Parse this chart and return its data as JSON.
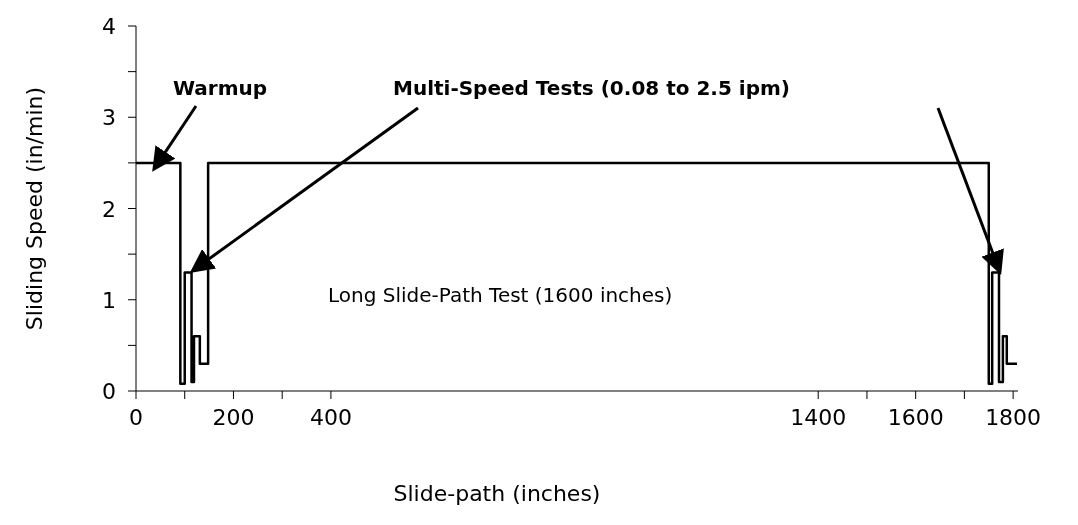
{
  "chart_data": {
    "type": "line",
    "xlabel": "Slide-path (inches)",
    "ylabel": "Sliding Speed (in/min)",
    "x": [
      0,
      91,
      91,
      100,
      100,
      114,
      114,
      119,
      119,
      131,
      131,
      148,
      148,
      153,
      153,
      1750,
      1750,
      1757,
      1757,
      1771,
      1771,
      1779,
      1779,
      1787,
      1787,
      1797,
      1797,
      1808
    ],
    "series": [
      {
        "color": "#000000",
        "values": [
          2.5,
          2.5,
          0.08,
          0.08,
          1.3,
          1.3,
          0.1,
          0.1,
          0.6,
          0.6,
          0.3,
          0.3,
          2.5,
          2.5,
          2.5,
          2.5,
          0.08,
          0.08,
          1.3,
          1.3,
          0.1,
          0.1,
          0.6,
          0.6,
          0.3,
          0.3,
          0.3,
          0.3
        ]
      }
    ],
    "xlim": [
      0,
      1810
    ],
    "xticks": [
      0,
      {
        "value": 100,
        "label": null
      },
      200,
      {
        "value": 300,
        "label": null
      },
      400,
      1400,
      {
        "value": 1500,
        "label": null
      },
      1600,
      {
        "value": 1700,
        "label": null
      },
      1800
    ],
    "ylim": [
      0,
      4
    ],
    "yticks": [
      0,
      {
        "value": 0.5,
        "label": null
      },
      1,
      {
        "value": 1.5,
        "label": null
      },
      2,
      {
        "value": 2.5,
        "label": null
      },
      3,
      {
        "value": 3.5,
        "label": null
      },
      4
    ],
    "annotations": [
      {
        "text": "Warmup",
        "x": 40,
        "y": 2.5
      },
      {
        "text": "Multi-Speed Tests (0.08 to 2.5 ipm)",
        "x": 114,
        "y": 1.3
      },
      "Long Slide-Path Test (1600 inches)"
    ],
    "grid": false,
    "legend": false,
    "marker": "none",
    "line_style": "solid"
  }
}
